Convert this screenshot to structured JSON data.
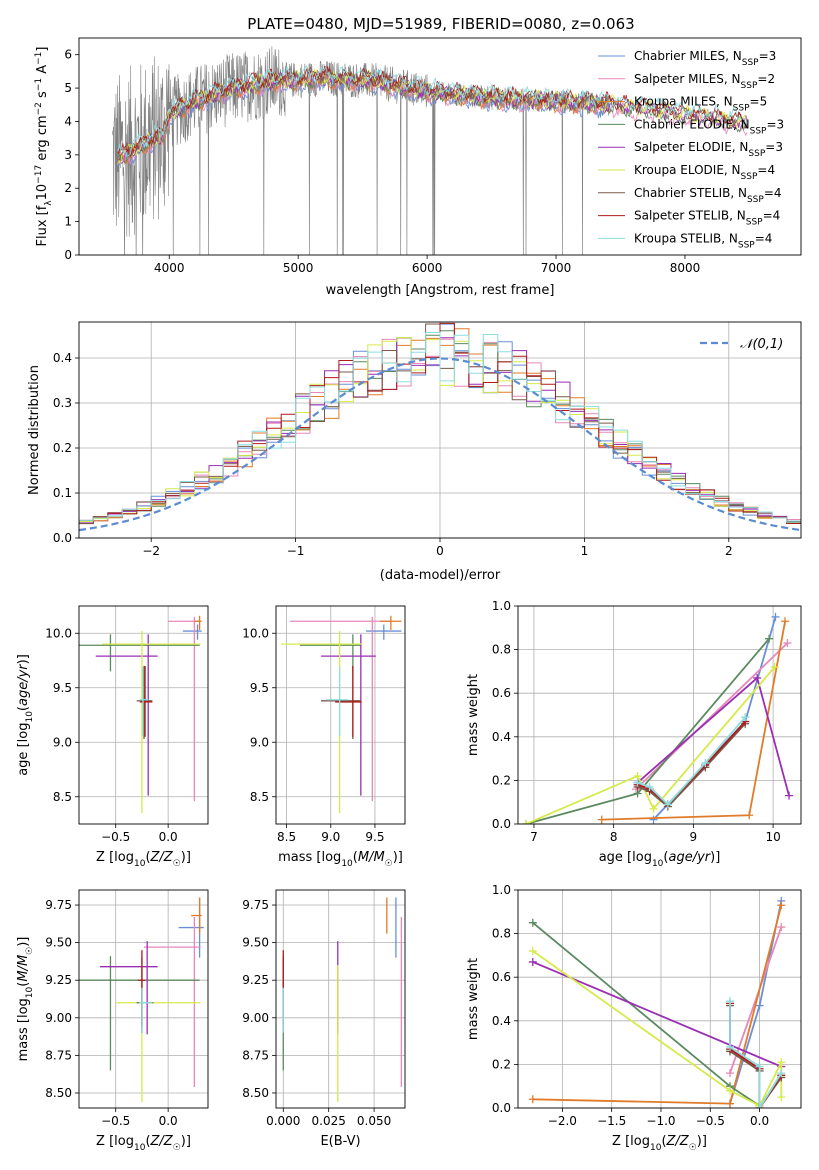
{
  "title": "PLATE=0480, MJD=51989, FIBERID=0080, z=0.063",
  "colors": {
    "chabrier_miles": "#6a8fd8",
    "salpeter_miles": "#e887b9",
    "kroupa_miles": "#e07b2a",
    "chabrier_elodie": "#5b8a5f",
    "salpeter_elodie": "#9a2fb4",
    "kroupa_elodie": "#d6ea4a",
    "chabrier_stelib": "#7a5a4a",
    "salpeter_stelib": "#b01c1c",
    "kroupa_stelib": "#8cdde0",
    "data_gray": "#808080",
    "normal": "#5b8bd0",
    "grid": "#b0b0b0"
  },
  "chart_data": [
    {
      "id": "spectrum",
      "type": "line",
      "title": "PLATE=0480, MJD=51989, FIBERID=0080, z=0.063",
      "xlabel": "wavelength [Angstrom, rest frame]",
      "ylabel": "Flux [f_λ10^-17 erg cm^-2 s^-1 A^-1]",
      "xlim": [
        3300,
        8900
      ],
      "ylim": [
        0,
        6.5
      ],
      "xticks": [
        4000,
        5000,
        6000,
        7000,
        8000
      ],
      "yticks": [
        0,
        1,
        2,
        3,
        4,
        5,
        6
      ],
      "grid": false,
      "legend_position": "top-right",
      "legend": [
        {
          "label": "Chabrier MILES, N",
          "sub": "SSP",
          "suffix": "=3"
        },
        {
          "label": "Salpeter MILES, N",
          "sub": "SSP",
          "suffix": "=2"
        },
        {
          "label": "Kroupa MILES, N",
          "sub": "SSP",
          "suffix": "=5"
        },
        {
          "label": "Chabrier ELODIE, N",
          "sub": "SSP",
          "suffix": "=3"
        },
        {
          "label": "Salpeter ELODIE, N",
          "sub": "SSP",
          "suffix": "=3"
        },
        {
          "label": "Kroupa ELODIE, N",
          "sub": "SSP",
          "suffix": "=4"
        },
        {
          "label": "Chabrier STELIB, N",
          "sub": "SSP",
          "suffix": "=4"
        },
        {
          "label": "Salpeter STELIB, N",
          "sub": "SSP",
          "suffix": "=4"
        },
        {
          "label": "Kroupa STELIB, N",
          "sub": "SSP",
          "suffix": "=4"
        }
      ],
      "continuum": [
        [
          3600,
          2.9
        ],
        [
          3800,
          3.3
        ],
        [
          3950,
          3.6
        ],
        [
          4000,
          4.2
        ],
        [
          4200,
          4.6
        ],
        [
          4500,
          5.0
        ],
        [
          4800,
          5.2
        ],
        [
          5200,
          5.3
        ],
        [
          5600,
          5.2
        ],
        [
          6000,
          4.9
        ],
        [
          6500,
          4.7
        ],
        [
          7000,
          4.6
        ],
        [
          7400,
          4.5
        ],
        [
          7800,
          4.3
        ],
        [
          8200,
          4.1
        ],
        [
          8500,
          3.9
        ]
      ],
      "data_range": [
        3560,
        7410
      ],
      "model_range": [
        3600,
        8480
      ]
    },
    {
      "id": "residuals",
      "type": "step",
      "xlabel": "(data-model)/error",
      "ylabel": "Normed distribution",
      "xlim": [
        -2.5,
        2.5
      ],
      "ylim": [
        0,
        0.48
      ],
      "xticks": [
        -2,
        -1,
        0,
        1,
        2
      ],
      "yticks": [
        0.0,
        0.1,
        0.2,
        0.3,
        0.4
      ],
      "grid": true,
      "legend_position": "top-right",
      "legend": [
        "𝒩(0,1)"
      ],
      "bin_width": 0.1
    },
    {
      "id": "age_vs_Z",
      "type": "scatter",
      "xlabel": "Z [log10(Z/Z☉)]",
      "ylabel": "age [log10(age/yr)]",
      "xlim": [
        -0.85,
        0.38
      ],
      "ylim": [
        8.25,
        10.25
      ],
      "xticks": [
        -0.5,
        0.0
      ],
      "yticks": [
        8.5,
        9.0,
        9.5,
        10.0
      ],
      "grid": true,
      "points": [
        {
          "model": "chabrier_miles",
          "x": 0.28,
          "y": 10.02,
          "xerr": [
            0.14,
            0.04
          ],
          "yerr": [
            0.08,
            0.06
          ]
        },
        {
          "model": "salpeter_miles",
          "x": 0.25,
          "y": 10.11,
          "xerr": [
            0.25,
            0.06
          ],
          "yerr": [
            1.65,
            0.04
          ]
        },
        {
          "model": "kroupa_miles",
          "x": 0.3,
          "y": 10.11,
          "xerr": [
            0.05,
            0.02
          ],
          "yerr": [
            0.08,
            0.05
          ]
        },
        {
          "model": "chabrier_elodie",
          "x": -0.55,
          "y": 9.89,
          "xerr": [
            0.3,
            0.85
          ],
          "yerr": [
            0.24,
            0.1
          ]
        },
        {
          "model": "salpeter_elodie",
          "x": -0.19,
          "y": 9.79,
          "xerr": [
            0.5,
            0.09
          ],
          "yerr": [
            1.28,
            0.2
          ]
        },
        {
          "model": "kroupa_elodie",
          "x": -0.25,
          "y": 9.9,
          "xerr": [
            0.38,
            0.56
          ],
          "yerr": [
            1.55,
            0.12
          ]
        },
        {
          "model": "chabrier_stelib",
          "x": -0.23,
          "y": 9.38,
          "xerr": [
            0.07,
            0.08
          ],
          "yerr": [
            0.35,
            0.32
          ]
        },
        {
          "model": "salpeter_stelib",
          "x": -0.22,
          "y": 9.37,
          "xerr": [
            0.05,
            0.07
          ],
          "yerr": [
            0.32,
            0.33
          ]
        },
        {
          "model": "kroupa_stelib",
          "x": -0.24,
          "y": 9.39,
          "xerr": [
            0.03,
            0.05
          ],
          "yerr": [
            0.33,
            0.3
          ]
        }
      ]
    },
    {
      "id": "age_vs_mass",
      "type": "scatter",
      "xlabel": "mass [log10(M/M☉)]",
      "ylabel": "",
      "xlim": [
        8.38,
        9.84
      ],
      "ylim": [
        8.25,
        10.25
      ],
      "xticks": [
        8.5,
        9.0,
        9.5
      ],
      "yticks": [
        8.5,
        9.0,
        9.5,
        10.0
      ],
      "grid": true,
      "points": [
        {
          "model": "chabrier_miles",
          "x": 9.6,
          "y": 10.02,
          "xerr": [
            0.2,
            0.2
          ],
          "yerr": [
            0.08,
            0.06
          ]
        },
        {
          "model": "salpeter_miles",
          "x": 9.47,
          "y": 10.11,
          "xerr": [
            0.93,
            0.2
          ],
          "yerr": [
            1.65,
            0.04
          ]
        },
        {
          "model": "kroupa_miles",
          "x": 9.68,
          "y": 10.11,
          "xerr": [
            0.12,
            0.12
          ],
          "yerr": [
            0.08,
            0.05
          ]
        },
        {
          "model": "chabrier_elodie",
          "x": 9.25,
          "y": 9.89,
          "xerr": [
            0.6,
            0.1
          ],
          "yerr": [
            0.24,
            0.1
          ]
        },
        {
          "model": "salpeter_elodie",
          "x": 9.34,
          "y": 9.79,
          "xerr": [
            0.45,
            0.17
          ],
          "yerr": [
            1.28,
            0.2
          ]
        },
        {
          "model": "kroupa_elodie",
          "x": 9.1,
          "y": 9.9,
          "xerr": [
            0.66,
            0.25
          ],
          "yerr": [
            1.55,
            0.12
          ]
        },
        {
          "model": "chabrier_stelib",
          "x": 9.25,
          "y": 9.38,
          "xerr": [
            0.36,
            0.09
          ],
          "yerr": [
            0.35,
            0.32
          ]
        },
        {
          "model": "salpeter_stelib",
          "x": 9.25,
          "y": 9.37,
          "xerr": [
            0.2,
            0.1
          ],
          "yerr": [
            0.32,
            0.33
          ]
        },
        {
          "model": "kroupa_stelib",
          "x": 9.1,
          "y": 9.39,
          "xerr": [
            0.15,
            0.1
          ],
          "yerr": [
            0.33,
            0.3
          ]
        }
      ]
    },
    {
      "id": "weight_vs_age",
      "type": "line",
      "xlabel": "age [log10(age/yr)]",
      "ylabel": "mass weight",
      "xlim": [
        6.8,
        10.35
      ],
      "ylim": [
        0,
        1.0
      ],
      "xticks": [
        7,
        8,
        9,
        10
      ],
      "yticks": [
        0.0,
        0.2,
        0.4,
        0.6,
        0.8,
        1.0
      ],
      "grid": true,
      "series": [
        {
          "model": "chabrier_miles",
          "x": [
            8.5,
            9.65,
            10.03
          ],
          "y": [
            0.02,
            0.47,
            0.95
          ]
        },
        {
          "model": "salpeter_miles",
          "x": [
            8.28,
            10.18
          ],
          "y": [
            0.16,
            0.83
          ]
        },
        {
          "model": "kroupa_miles",
          "x": [
            7.85,
            9.7,
            10.15
          ],
          "y": [
            0.02,
            0.04,
            0.93
          ]
        },
        {
          "model": "chabrier_elodie",
          "x": [
            6.9,
            8.3,
            9.95
          ],
          "y": [
            0.0,
            0.14,
            0.85
          ]
        },
        {
          "model": "salpeter_elodie",
          "x": [
            8.3,
            9.8,
            10.2
          ],
          "y": [
            0.19,
            0.67,
            0.13
          ]
        },
        {
          "model": "kroupa_elodie",
          "x": [
            6.9,
            8.3,
            8.5,
            10.02
          ],
          "y": [
            0.0,
            0.22,
            0.07,
            0.72
          ]
        },
        {
          "model": "chabrier_stelib",
          "x": [
            8.3,
            8.45,
            8.68,
            9.15,
            9.65
          ],
          "y": [
            0.17,
            0.15,
            0.08,
            0.26,
            0.46
          ]
        },
        {
          "model": "salpeter_stelib",
          "x": [
            8.3,
            8.45,
            8.68,
            9.15,
            9.65
          ],
          "y": [
            0.18,
            0.16,
            0.09,
            0.27,
            0.47
          ]
        },
        {
          "model": "kroupa_stelib",
          "x": [
            8.3,
            8.45,
            8.68,
            9.15,
            9.65
          ],
          "y": [
            0.19,
            0.17,
            0.09,
            0.28,
            0.49
          ]
        }
      ]
    },
    {
      "id": "mass_vs_Z",
      "type": "scatter",
      "xlabel": "Z [log10(Z/Z☉)]",
      "ylabel": "mass [log10(M/M☉)]",
      "xlim": [
        -0.85,
        0.38
      ],
      "ylim": [
        8.4,
        9.85
      ],
      "xticks": [
        -0.5,
        0.0
      ],
      "yticks": [
        8.5,
        8.75,
        9.0,
        9.25,
        9.5,
        9.75
      ],
      "grid": true,
      "points": [
        {
          "model": "chabrier_miles",
          "x": 0.3,
          "y": 9.6,
          "xerr": [
            0.2,
            0.04
          ],
          "yerr": [
            0.2,
            0.2
          ]
        },
        {
          "model": "salpeter_miles",
          "x": 0.25,
          "y": 9.47,
          "xerr": [
            0.48,
            0.06
          ],
          "yerr": [
            0.93,
            0.2
          ]
        },
        {
          "model": "kroupa_miles",
          "x": 0.3,
          "y": 9.68,
          "xerr": [
            0.08,
            0.02
          ],
          "yerr": [
            0.12,
            0.12
          ]
        },
        {
          "model": "chabrier_elodie",
          "x": -0.55,
          "y": 9.25,
          "xerr": [
            0.3,
            0.85
          ],
          "yerr": [
            0.6,
            0.16
          ]
        },
        {
          "model": "salpeter_elodie",
          "x": -0.2,
          "y": 9.34,
          "xerr": [
            0.45,
            0.1
          ],
          "yerr": [
            0.45,
            0.17
          ]
        },
        {
          "model": "kroupa_elodie",
          "x": -0.25,
          "y": 9.1,
          "xerr": [
            0.25,
            0.56
          ],
          "yerr": [
            0.66,
            0.25
          ]
        },
        {
          "model": "chabrier_stelib",
          "x": -0.25,
          "y": 9.1,
          "xerr": [
            0.05,
            0.11
          ],
          "yerr": [
            0.2,
            0.3
          ]
        },
        {
          "model": "salpeter_stelib",
          "x": -0.25,
          "y": 9.25,
          "xerr": [
            0.04,
            0.03
          ],
          "yerr": [
            0.3,
            0.2
          ]
        },
        {
          "model": "kroupa_stelib",
          "x": -0.25,
          "y": 9.1,
          "xerr": [
            0.03,
            0.1
          ],
          "yerr": [
            0.2,
            0.1
          ]
        }
      ]
    },
    {
      "id": "mass_vs_EBV",
      "type": "scatter",
      "xlabel": "E(B-V)",
      "ylabel": "",
      "xlim": [
        -0.004,
        0.067
      ],
      "ylim": [
        8.4,
        9.85
      ],
      "xticks": [
        0.0,
        0.025,
        0.05
      ],
      "yticks": [
        8.5,
        8.75,
        9.0,
        9.25,
        9.5,
        9.75
      ],
      "grid": true,
      "points": [
        {
          "model": "chabrier_miles",
          "x": 0.062,
          "y": 9.6,
          "yerr": [
            0.2,
            0.2
          ]
        },
        {
          "model": "salpeter_miles",
          "x": 0.065,
          "y": 9.47,
          "yerr": [
            0.93,
            0.2
          ]
        },
        {
          "model": "kroupa_miles",
          "x": 0.057,
          "y": 9.68,
          "yerr": [
            0.12,
            0.12
          ]
        },
        {
          "model": "chabrier_elodie",
          "x": 0.0,
          "y": 9.25,
          "yerr": [
            0.6,
            0.16
          ]
        },
        {
          "model": "salpeter_elodie",
          "x": 0.03,
          "y": 9.34,
          "yerr": [
            0.45,
            0.17
          ]
        },
        {
          "model": "kroupa_elodie",
          "x": 0.03,
          "y": 9.1,
          "yerr": [
            0.66,
            0.25
          ]
        },
        {
          "model": "chabrier_stelib",
          "x": 0.0,
          "y": 9.1,
          "yerr": [
            0.2,
            0.3
          ]
        },
        {
          "model": "salpeter_stelib",
          "x": 0.0,
          "y": 9.25,
          "yerr": [
            0.3,
            0.2
          ]
        },
        {
          "model": "kroupa_stelib",
          "x": 0.0,
          "y": 9.1,
          "yerr": [
            0.2,
            0.1
          ]
        }
      ]
    },
    {
      "id": "weight_vs_Z",
      "type": "line",
      "xlabel": "Z [log10(Z/Z☉)]",
      "ylabel": "mass weight",
      "xlim": [
        -2.45,
        0.42
      ],
      "ylim": [
        0,
        1.0
      ],
      "xticks": [
        -2.0,
        -1.5,
        -1.0,
        -0.5,
        0.0
      ],
      "yticks": [
        0.0,
        0.2,
        0.4,
        0.6,
        0.8,
        1.0
      ],
      "grid": true,
      "series": [
        {
          "model": "chabrier_miles",
          "x": [
            -0.3,
            0.0,
            0.22
          ],
          "y": [
            0.02,
            0.47,
            0.95
          ]
        },
        {
          "model": "salpeter_miles",
          "x": [
            -0.3,
            0.22
          ],
          "y": [
            0.16,
            0.83
          ]
        },
        {
          "model": "kroupa_miles",
          "x": [
            -2.3,
            -0.3,
            0.22
          ],
          "y": [
            0.04,
            0.02,
            0.93
          ]
        },
        {
          "model": "chabrier_elodie",
          "x": [
            -2.3,
            -0.3,
            0.0,
            0.22
          ],
          "y": [
            0.85,
            0.1,
            0.01,
            0.14
          ]
        },
        {
          "model": "salpeter_elodie",
          "x": [
            -2.3,
            0.22
          ],
          "y": [
            0.67,
            0.19
          ]
        },
        {
          "model": "kroupa_elodie",
          "x": [
            -2.3,
            -0.3,
            0.0,
            0.22,
            0.22
          ],
          "y": [
            0.72,
            0.08,
            0.01,
            0.21,
            0.05
          ]
        },
        {
          "model": "chabrier_stelib",
          "x": [
            -0.3,
            -0.3,
            0.0,
            0.0,
            0.22
          ],
          "y": [
            0.47,
            0.26,
            0.17,
            0.0,
            0.14
          ]
        },
        {
          "model": "salpeter_stelib",
          "x": [
            -0.3,
            -0.3,
            0.0,
            0.0,
            0.22
          ],
          "y": [
            0.48,
            0.27,
            0.18,
            0.0,
            0.15
          ]
        },
        {
          "model": "kroupa_stelib",
          "x": [
            -0.3,
            -0.3,
            0.0,
            0.0,
            0.22
          ],
          "y": [
            0.49,
            0.28,
            0.19,
            0.0,
            0.16
          ]
        }
      ]
    }
  ]
}
